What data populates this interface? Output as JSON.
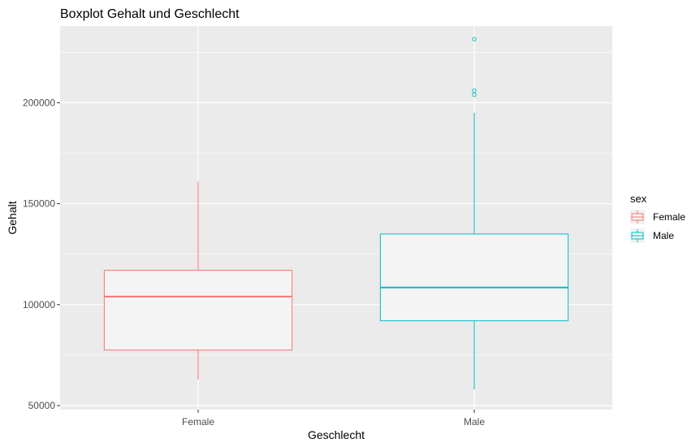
{
  "chart_data": {
    "type": "boxplot",
    "title": "Boxplot Gehalt und Geschlecht",
    "xlabel": "Geschlecht",
    "ylabel": "Gehalt",
    "ylim": [
      48000,
      238000
    ],
    "yticks": [
      50000,
      100000,
      150000,
      200000
    ],
    "ytick_labels": [
      "50000",
      "100000",
      "150000",
      "200000"
    ],
    "categories": [
      "Female",
      "Male"
    ],
    "grid": true,
    "legend": {
      "title": "sex",
      "position": "right",
      "entries": [
        {
          "label": "Female",
          "color": "#F8766D"
        },
        {
          "label": "Male",
          "color": "#00BFC4"
        }
      ]
    },
    "boxes": [
      {
        "category": "Female",
        "color": "#F8766D",
        "min": 63000,
        "q1": 77500,
        "median": 104000,
        "q3": 117000,
        "max": 161000,
        "outliers": []
      },
      {
        "category": "Male",
        "color": "#00BFC4",
        "min": 58000,
        "q1": 92000,
        "median": 108500,
        "q3": 135000,
        "max": 195000,
        "outliers": [
          204000,
          206000,
          231500
        ]
      }
    ]
  },
  "colors": {
    "panel_bg": "#EBEBEB",
    "grid": "#FFFFFF",
    "box_fill": "#F4F4F4"
  }
}
